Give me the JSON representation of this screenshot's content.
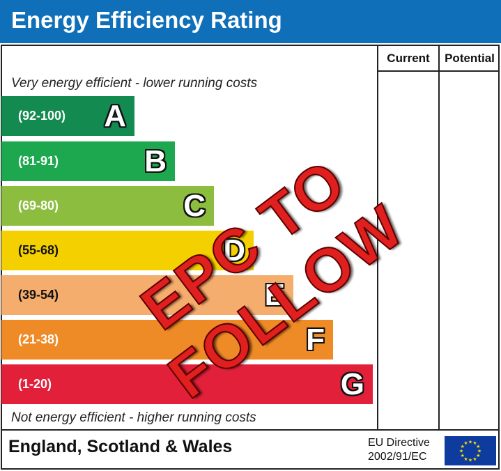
{
  "header": {
    "title": "Energy Efficiency Rating",
    "color": "#0f6fb8"
  },
  "columns": {
    "current": "Current",
    "potential": "Potential"
  },
  "captions": {
    "top": "Very energy efficient - lower running costs",
    "bottom": "Not energy efficient - higher running costs"
  },
  "bands": [
    {
      "range": "(92-100)",
      "letter": "A",
      "color": "#138a4f"
    },
    {
      "range": "(81-91)",
      "letter": "B",
      "color": "#1da84f"
    },
    {
      "range": "(69-80)",
      "letter": "C",
      "color": "#8cbd3f"
    },
    {
      "range": "(55-68)",
      "letter": "D",
      "color": "#f4d000"
    },
    {
      "range": "(39-54)",
      "letter": "E",
      "color": "#f5ad6d"
    },
    {
      "range": "(21-38)",
      "letter": "F",
      "color": "#ee8b26"
    },
    {
      "range": "(1-20)",
      "letter": "G",
      "color": "#e2203a"
    }
  ],
  "footer": {
    "region": "England, Scotland & Wales",
    "directive_line1": "EU Directive",
    "directive_line2": "2002/91/EC"
  },
  "stamp": {
    "text": "EPC TO FOLLOW",
    "color": "#e0201e"
  },
  "icons": {
    "eu_flag": "eu-flag-icon"
  }
}
